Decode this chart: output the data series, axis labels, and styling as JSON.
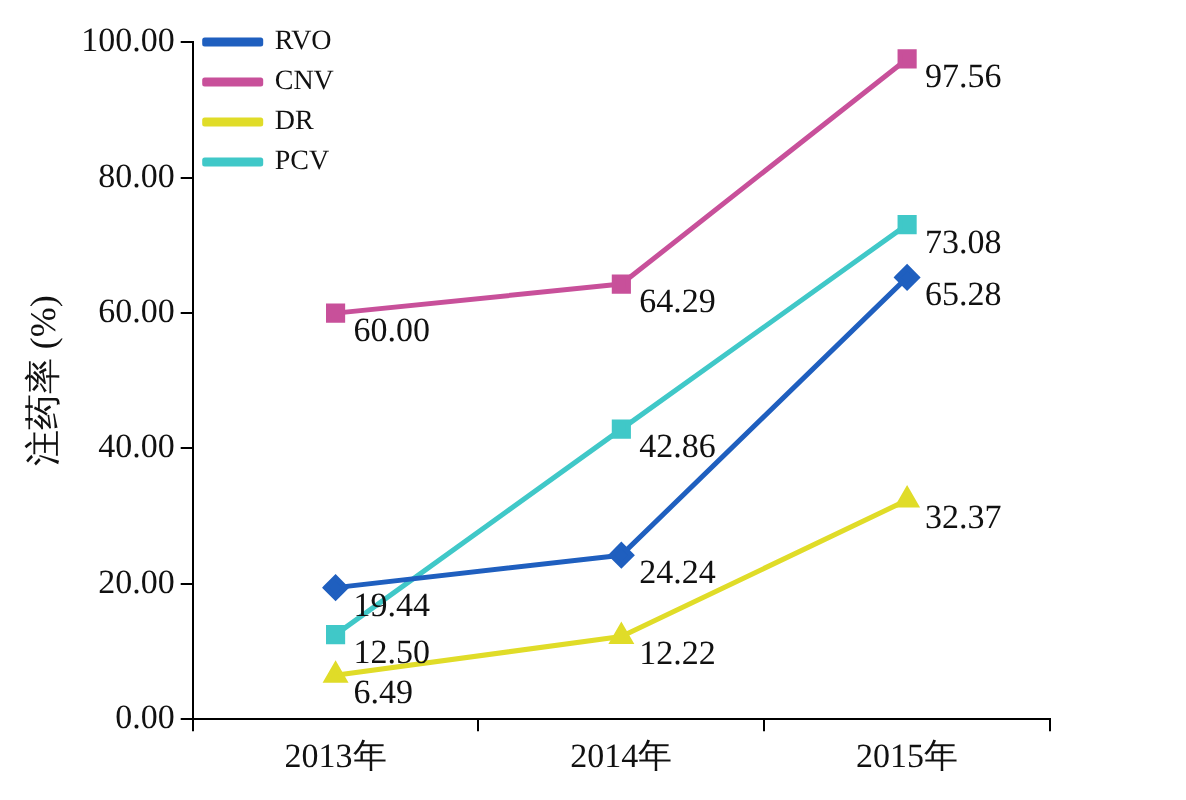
{
  "chart_data": {
    "type": "line",
    "ylabel": "注药率 (%)",
    "categories": [
      "2013年",
      "2014年",
      "2015年"
    ],
    "series": [
      {
        "name": "RVO",
        "color": "#1f5fbf",
        "marker": "diamond",
        "values": [
          19.44,
          24.24,
          65.28
        ],
        "value_labels": [
          "19.44",
          "24.24",
          "65.28"
        ]
      },
      {
        "name": "CNV",
        "color": "#c8509a",
        "marker": "square",
        "values": [
          60.0,
          64.29,
          97.56
        ],
        "value_labels": [
          "60.00",
          "64.29",
          "97.56"
        ]
      },
      {
        "name": "DR",
        "color": "#e0dc28",
        "marker": "triangle",
        "values": [
          6.49,
          12.22,
          32.37
        ],
        "value_labels": [
          "6.49",
          "12.22",
          "32.37"
        ]
      },
      {
        "name": "PCV",
        "color": "#40c8c8",
        "marker": "square",
        "values": [
          12.5,
          42.86,
          73.08
        ],
        "value_labels": [
          "12.50",
          "42.86",
          "73.08"
        ]
      }
    ],
    "ylim": [
      0,
      100
    ],
    "yticks": [
      {
        "value": 0,
        "label": "0.00"
      },
      {
        "value": 20,
        "label": "20.00"
      },
      {
        "value": 40,
        "label": "40.00"
      },
      {
        "value": 60,
        "label": "60.00"
      },
      {
        "value": 80,
        "label": "80.00"
      },
      {
        "value": 100,
        "label": "100.00"
      }
    ],
    "grid": false,
    "legend": "top left",
    "line_style": "solid"
  }
}
